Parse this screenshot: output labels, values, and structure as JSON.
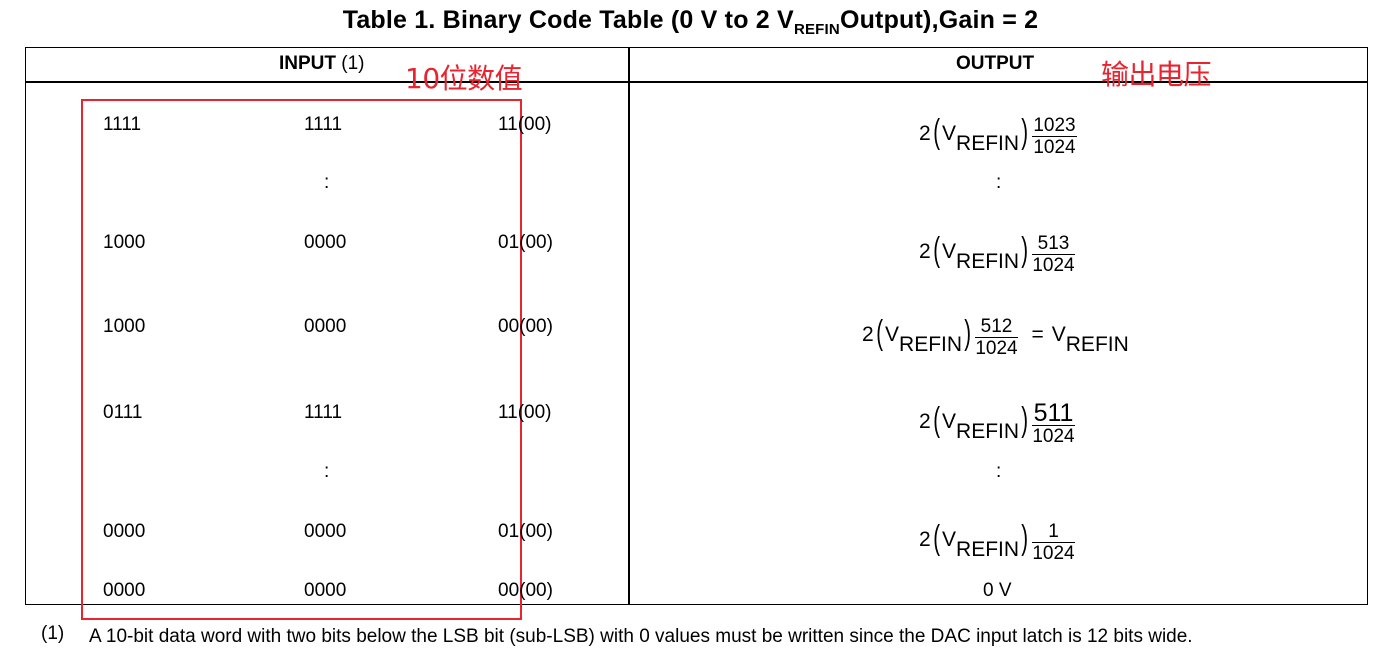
{
  "title": {
    "prefix": "Table 1. Binary Code Table (0 V to 2 V",
    "sub": "REFIN",
    "suffix": "Output),Gain = 2"
  },
  "headers": {
    "input": "INPUT",
    "input_note": "(1)",
    "output": "OUTPUT"
  },
  "annotations": {
    "input": "10位数值",
    "output": "输出电压"
  },
  "rows": [
    {
      "c1": "1111",
      "c2": "1111",
      "c3": "11(00)",
      "out": {
        "coef": "2",
        "v": "V",
        "sub": "REFIN",
        "num": "1023",
        "den": "1024"
      }
    },
    {
      "c1": "1000",
      "c2": "0000",
      "c3": "01(00)",
      "out": {
        "coef": "2",
        "v": "V",
        "sub": "REFIN",
        "num": "513",
        "den": "1024"
      }
    },
    {
      "c1": "1000",
      "c2": "0000",
      "c3": "00(00)",
      "out": {
        "coef": "2",
        "v": "V",
        "sub": "REFIN",
        "num": "512",
        "den": "1024",
        "eq": "=",
        "eq_v": "V",
        "eq_sub": "REFIN"
      }
    },
    {
      "c1": "0111",
      "c2": "1111",
      "c3": "11(00)",
      "out": {
        "coef": "2",
        "v": "V",
        "sub": "REFIN",
        "num": "511",
        "den": "1024"
      }
    },
    {
      "c1": "0000",
      "c2": "0000",
      "c3": "01(00)",
      "out": {
        "coef": "2",
        "v": "V",
        "sub": "REFIN",
        "num": "1",
        "den": "1024"
      }
    },
    {
      "c1": "0000",
      "c2": "0000",
      "c3": "00(00)",
      "out_text": "0 V"
    }
  ],
  "ellipsis": ":",
  "footnote": {
    "marker": "(1)",
    "text": "A 10-bit data word with two bits below the LSB bit (sub-LSB) with 0 values must be written since the DAC input latch is 12 bits wide."
  },
  "colors": {
    "annotation": "#e8242f",
    "border": "#000000"
  }
}
